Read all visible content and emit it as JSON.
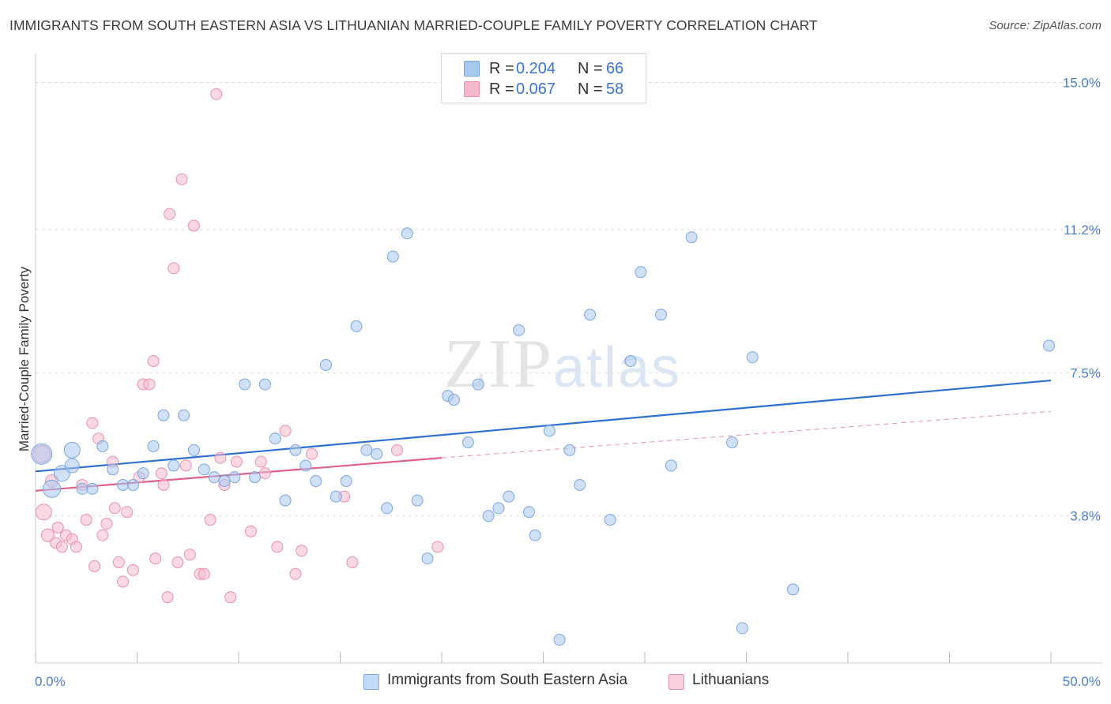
{
  "title": "IMMIGRANTS FROM SOUTH EASTERN ASIA VS LITHUANIAN MARRIED-COUPLE FAMILY POVERTY CORRELATION CHART",
  "source": "Source: ZipAtlas.com",
  "watermark": "ZIPatlas",
  "legend": {
    "series1": {
      "r_label": "R =",
      "r_value": "0.204",
      "n_label": "N =",
      "n_value": "66"
    },
    "series2": {
      "r_label": "R =",
      "r_value": "0.067",
      "n_label": "N =",
      "n_value": "58"
    }
  },
  "colors": {
    "blue_fill": "#a9c8f0",
    "blue_stroke": "#7aa6e0",
    "blue_line": "#2f6fd0",
    "pink_fill": "#f6b9cc",
    "pink_stroke": "#e98fae",
    "pink_line": "#e0608c",
    "grid": "#dddddd",
    "axis_text": "#4a7fd0"
  },
  "chart_data": {
    "type": "scatter",
    "title": "IMMIGRANTS FROM SOUTH EASTERN ASIA VS LITHUANIAN MARRIED-COUPLE FAMILY POVERTY CORRELATION CHART",
    "xlabel": "",
    "ylabel": "Married-Couple Family Poverty",
    "xlim": [
      0,
      50
    ],
    "ylim": [
      0.0,
      15.5
    ],
    "x_tick_labels": [
      "0.0%",
      "50.0%"
    ],
    "y_ticks": [
      3.8,
      7.5,
      11.2,
      15.0
    ],
    "y_tick_labels": [
      "3.8%",
      "7.5%",
      "11.2%",
      "15.0%"
    ],
    "series": [
      {
        "name": "Immigrants from South Eastern Asia",
        "color": "blue",
        "trend": {
          "x": [
            0,
            50
          ],
          "y": [
            4.95,
            7.3
          ],
          "style": "solid"
        },
        "points": [
          [
            0.3,
            5.4,
            26
          ],
          [
            0.8,
            4.5,
            22
          ],
          [
            1.8,
            5.5,
            20
          ],
          [
            1.3,
            4.9,
            20
          ],
          [
            1.8,
            5.1,
            18
          ],
          [
            2.3,
            4.5,
            14
          ],
          [
            2.8,
            4.5,
            14
          ],
          [
            3.8,
            5.0,
            14
          ],
          [
            3.3,
            5.6,
            14
          ],
          [
            4.3,
            4.6,
            14
          ],
          [
            5.3,
            4.9,
            14
          ],
          [
            4.8,
            4.6,
            14
          ],
          [
            5.8,
            5.6,
            14
          ],
          [
            6.3,
            6.4,
            14
          ],
          [
            6.8,
            5.1,
            14
          ],
          [
            7.3,
            6.4,
            14
          ],
          [
            7.8,
            5.5,
            14
          ],
          [
            8.3,
            5.0,
            14
          ],
          [
            8.8,
            4.8,
            14
          ],
          [
            9.3,
            4.7,
            14
          ],
          [
            9.8,
            4.8,
            14
          ],
          [
            10.3,
            7.2,
            14
          ],
          [
            10.8,
            4.8,
            14
          ],
          [
            11.3,
            7.2,
            14
          ],
          [
            11.8,
            5.8,
            14
          ],
          [
            12.3,
            4.2,
            14
          ],
          [
            12.8,
            5.5,
            14
          ],
          [
            13.3,
            5.1,
            14
          ],
          [
            13.8,
            4.7,
            14
          ],
          [
            14.3,
            7.7,
            14
          ],
          [
            14.8,
            4.3,
            14
          ],
          [
            15.3,
            4.7,
            14
          ],
          [
            15.8,
            8.7,
            14
          ],
          [
            16.3,
            5.5,
            14
          ],
          [
            16.8,
            5.4,
            14
          ],
          [
            17.3,
            4.0,
            14
          ],
          [
            17.6,
            10.5,
            14
          ],
          [
            18.3,
            11.1,
            14
          ],
          [
            18.8,
            4.2,
            14
          ],
          [
            19.3,
            2.7,
            14
          ],
          [
            20.3,
            6.9,
            14
          ],
          [
            20.6,
            6.8,
            14
          ],
          [
            21.3,
            5.7,
            14
          ],
          [
            21.8,
            7.2,
            14
          ],
          [
            22.3,
            3.8,
            14
          ],
          [
            22.8,
            4.0,
            14
          ],
          [
            23.3,
            4.3,
            14
          ],
          [
            23.8,
            8.6,
            14
          ],
          [
            24.3,
            3.9,
            14
          ],
          [
            24.6,
            3.3,
            14
          ],
          [
            25.3,
            6.0,
            14
          ],
          [
            25.8,
            0.6,
            14
          ],
          [
            26.3,
            5.5,
            14
          ],
          [
            26.8,
            4.6,
            14
          ],
          [
            27.3,
            9.0,
            14
          ],
          [
            28.3,
            3.7,
            14
          ],
          [
            29.3,
            7.8,
            14
          ],
          [
            29.8,
            10.1,
            14
          ],
          [
            30.8,
            9.0,
            14
          ],
          [
            31.3,
            5.1,
            14
          ],
          [
            32.3,
            11.0,
            14
          ],
          [
            34.3,
            5.7,
            14
          ],
          [
            34.8,
            0.9,
            14
          ],
          [
            35.3,
            7.9,
            14
          ],
          [
            37.3,
            1.9,
            14
          ],
          [
            49.9,
            8.2,
            14
          ]
        ]
      },
      {
        "name": "Lithuanians",
        "color": "pink",
        "trend": {
          "x": [
            0,
            20
          ],
          "y": [
            4.45,
            5.3
          ],
          "style": "solid",
          "dashed_extension": {
            "x": [
              20,
              50
            ],
            "y": [
              5.3,
              6.5
            ]
          }
        },
        "points": [
          [
            0.3,
            5.4,
            22
          ],
          [
            0.4,
            3.9,
            20
          ],
          [
            0.6,
            3.3,
            16
          ],
          [
            0.8,
            4.7,
            16
          ],
          [
            1.0,
            3.1,
            14
          ],
          [
            1.1,
            3.5,
            14
          ],
          [
            1.3,
            3.0,
            14
          ],
          [
            1.5,
            3.3,
            14
          ],
          [
            1.8,
            3.2,
            14
          ],
          [
            2.0,
            3.0,
            14
          ],
          [
            2.3,
            4.6,
            14
          ],
          [
            2.5,
            3.7,
            14
          ],
          [
            2.8,
            6.2,
            14
          ],
          [
            2.9,
            2.5,
            14
          ],
          [
            3.1,
            5.8,
            14
          ],
          [
            3.3,
            3.3,
            14
          ],
          [
            3.5,
            3.6,
            14
          ],
          [
            3.8,
            5.2,
            14
          ],
          [
            3.9,
            4.0,
            14
          ],
          [
            4.1,
            2.6,
            14
          ],
          [
            4.3,
            2.1,
            14
          ],
          [
            4.5,
            3.9,
            14
          ],
          [
            4.8,
            2.4,
            14
          ],
          [
            5.1,
            4.8,
            14
          ],
          [
            5.3,
            7.2,
            14
          ],
          [
            5.6,
            7.2,
            14
          ],
          [
            5.8,
            7.8,
            14
          ],
          [
            5.9,
            2.7,
            14
          ],
          [
            6.2,
            4.9,
            14
          ],
          [
            6.3,
            4.6,
            14
          ],
          [
            6.5,
            1.7,
            14
          ],
          [
            6.6,
            11.6,
            14
          ],
          [
            6.8,
            10.2,
            14
          ],
          [
            7.0,
            2.6,
            14
          ],
          [
            7.2,
            12.5,
            14
          ],
          [
            7.4,
            5.1,
            14
          ],
          [
            7.6,
            2.8,
            14
          ],
          [
            7.8,
            11.3,
            14
          ],
          [
            8.1,
            2.3,
            14
          ],
          [
            8.3,
            2.3,
            14
          ],
          [
            8.6,
            3.7,
            14
          ],
          [
            8.9,
            14.7,
            14
          ],
          [
            9.1,
            5.3,
            14
          ],
          [
            9.3,
            4.6,
            14
          ],
          [
            9.6,
            1.7,
            14
          ],
          [
            9.9,
            5.2,
            14
          ],
          [
            10.6,
            3.4,
            14
          ],
          [
            11.1,
            5.2,
            14
          ],
          [
            11.3,
            4.9,
            14
          ],
          [
            11.9,
            3.0,
            14
          ],
          [
            12.3,
            6.0,
            14
          ],
          [
            12.8,
            2.3,
            14
          ],
          [
            13.1,
            2.9,
            14
          ],
          [
            13.6,
            5.4,
            14
          ],
          [
            15.2,
            4.3,
            14
          ],
          [
            15.6,
            2.6,
            14
          ],
          [
            17.8,
            5.5,
            14
          ],
          [
            19.8,
            3.0,
            14
          ]
        ]
      }
    ]
  },
  "bottom_legend": {
    "series1_label": "Immigrants from South Eastern Asia",
    "series2_label": "Lithuanians"
  }
}
